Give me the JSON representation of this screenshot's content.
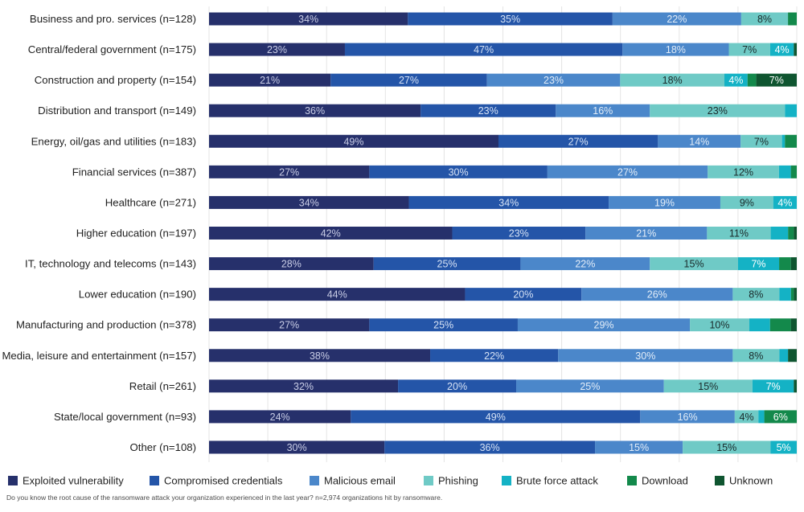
{
  "chart_data": {
    "type": "bar",
    "orientation": "horizontal",
    "stacked": true,
    "percent_stacked": true,
    "xlim": [
      0,
      100
    ],
    "grid": true,
    "legend_position": "bottom",
    "categories": [
      "Business and pro. services (n=128)",
      "Central/federal government (n=175)",
      "Construction and property (n=154)",
      "Distribution and transport (n=149)",
      "Energy, oil/gas and utilities (n=183)",
      "Financial services (n=387)",
      "Healthcare (n=271)",
      "Higher education (n=197)",
      "IT, technology and telecoms (n=143)",
      "Lower education (n=190)",
      "Manufacturing and production (n=378)",
      "Media, leisure and entertainment (n=157)",
      "Retail (n=261)",
      "State/local government (n=93)",
      "Other (n=108)"
    ],
    "series": [
      {
        "name": "Exploited vulnerability",
        "color": "#26306b",
        "label_color": "#c9cde6",
        "values": [
          34,
          23,
          21,
          36,
          49,
          27,
          34,
          42,
          28,
          44,
          27,
          38,
          32,
          24,
          30
        ]
      },
      {
        "name": "Compromised credentials",
        "color": "#2455a8",
        "label_color": "#d6e2f5",
        "values": [
          35,
          47,
          27,
          23,
          27,
          30,
          34,
          23,
          25,
          20,
          25,
          22,
          20,
          49,
          36
        ]
      },
      {
        "name": "Malicious email",
        "color": "#4b87ca",
        "label_color": "#e3edf8",
        "values": [
          22,
          18,
          23,
          16,
          14,
          27,
          19,
          21,
          22,
          26,
          29,
          30,
          25,
          16,
          15
        ]
      },
      {
        "name": "Phishing",
        "color": "#6fcac6",
        "label_color": "#1a2a2a",
        "values": [
          8,
          7,
          18,
          23,
          7,
          12,
          9,
          11,
          15,
          8,
          10,
          8,
          15,
          4,
          15
        ]
      },
      {
        "name": "Brute force attack",
        "color": "#14b2c5",
        "label_color": "#ffffff",
        "values": [
          0,
          4,
          4,
          2,
          0.5,
          2,
          4,
          3,
          7,
          2,
          3.5,
          1.5,
          7,
          1,
          4.5
        ]
      },
      {
        "name": "Download",
        "color": "#13894b",
        "label_color": "#ffffff",
        "values": [
          1.5,
          0,
          1.5,
          0,
          2,
          1,
          0,
          1,
          2,
          0.5,
          3.5,
          0,
          0,
          5.5,
          0
        ]
      },
      {
        "name": "Unknown",
        "color": "#0f5530",
        "label_color": "#ffffff",
        "values": [
          0,
          0.5,
          7,
          0,
          0,
          0,
          0,
          0.5,
          1,
          0.5,
          1,
          1.5,
          0.5,
          0,
          0
        ]
      }
    ],
    "label_threshold": 4,
    "footnote": "Do you know the root cause of the ransomware attack your organization experienced in the last year? n=2,974 organizations hit by ransomware."
  }
}
